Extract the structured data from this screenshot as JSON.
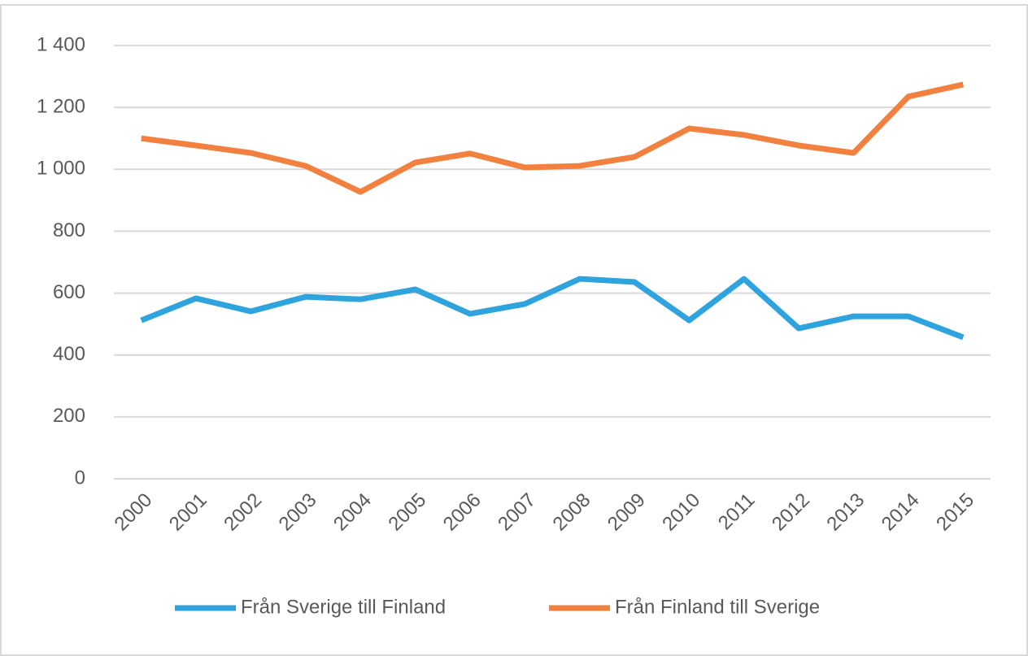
{
  "chart_data": {
    "type": "line",
    "categories": [
      "2000",
      "2001",
      "2002",
      "2003",
      "2004",
      "2005",
      "2006",
      "2007",
      "2008",
      "2009",
      "2010",
      "2011",
      "2012",
      "2013",
      "2014",
      "2015"
    ],
    "series": [
      {
        "name": "Från Sverige till Finland",
        "color": "#2ea3dd",
        "values": [
          512,
          583,
          541,
          588,
          580,
          612,
          533,
          565,
          646,
          636,
          512,
          646,
          486,
          525,
          525,
          457
        ]
      },
      {
        "name": "Från Finland till Sverige",
        "color": "#f2813f",
        "values": [
          1100,
          1077,
          1053,
          1011,
          927,
          1022,
          1051,
          1006,
          1011,
          1040,
          1132,
          1111,
          1077,
          1053,
          1235,
          1274
        ]
      }
    ],
    "ylim": [
      0,
      1400
    ],
    "yticks": [
      0,
      200,
      400,
      600,
      800,
      {
        "value": 1000,
        "label": "1 000"
      },
      {
        "value": 1200,
        "label": "1 200"
      },
      {
        "value": 1400,
        "label": "1 400"
      }
    ],
    "grid": true,
    "legend": "bottom"
  }
}
